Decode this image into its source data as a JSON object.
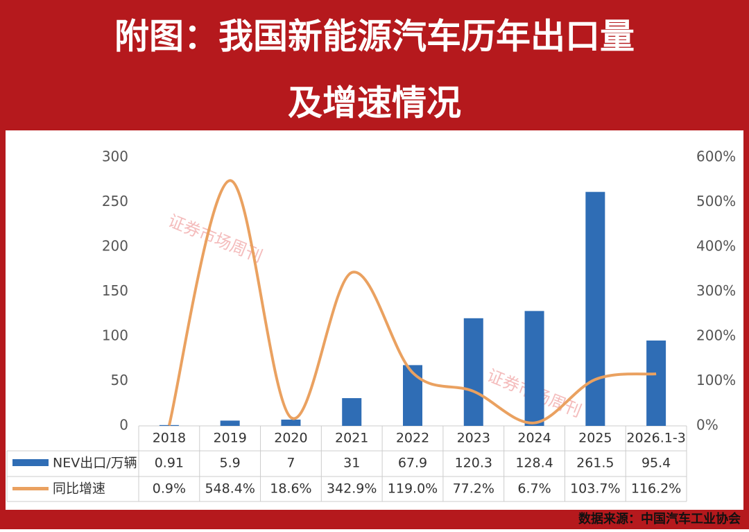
{
  "chart_data": {
    "type": "bar-line",
    "title": "附图：我国新能源汽车历年出口量",
    "title_line2": "及增速情况",
    "source": "数据来源：中国汽车工业协会",
    "watermark": "证券市场周刊",
    "categories": [
      "2018",
      "2019",
      "2020",
      "2021",
      "2022",
      "2023",
      "2024",
      "2025",
      "2026.1-3"
    ],
    "series": [
      {
        "name": "NEV出口/万辆",
        "color": "#2f6db5",
        "values": [
          0.91,
          5.9,
          7,
          31,
          67.9,
          120.3,
          128.4,
          261.5,
          95.4
        ]
      },
      {
        "name": "同比增速",
        "color": "#eaa160",
        "axis": "y2",
        "values": [
          0.9,
          548.4,
          18.6,
          342.9,
          119.0,
          77.2,
          6.7,
          103.7,
          116.2
        ],
        "value_labels": [
          "0.9%",
          "548.4%",
          "18.6%",
          "342.9%",
          "119.0%",
          "77.2%",
          "6.7%",
          "103.7%",
          "116.2%"
        ]
      }
    ],
    "ylim": [
      0,
      300
    ],
    "yticks": [
      0,
      50,
      100,
      150,
      200,
      250,
      300
    ],
    "y2lim": [
      0,
      600
    ],
    "y2ticks": [
      {
        "value": 0,
        "label": "0%"
      },
      {
        "value": 100,
        "label": "100%"
      },
      {
        "value": 200,
        "label": "200%"
      },
      {
        "value": 300,
        "label": "300%"
      },
      {
        "value": 400,
        "label": "400%"
      },
      {
        "value": 500,
        "label": "500%"
      },
      {
        "value": 600,
        "label": "600%"
      }
    ]
  }
}
